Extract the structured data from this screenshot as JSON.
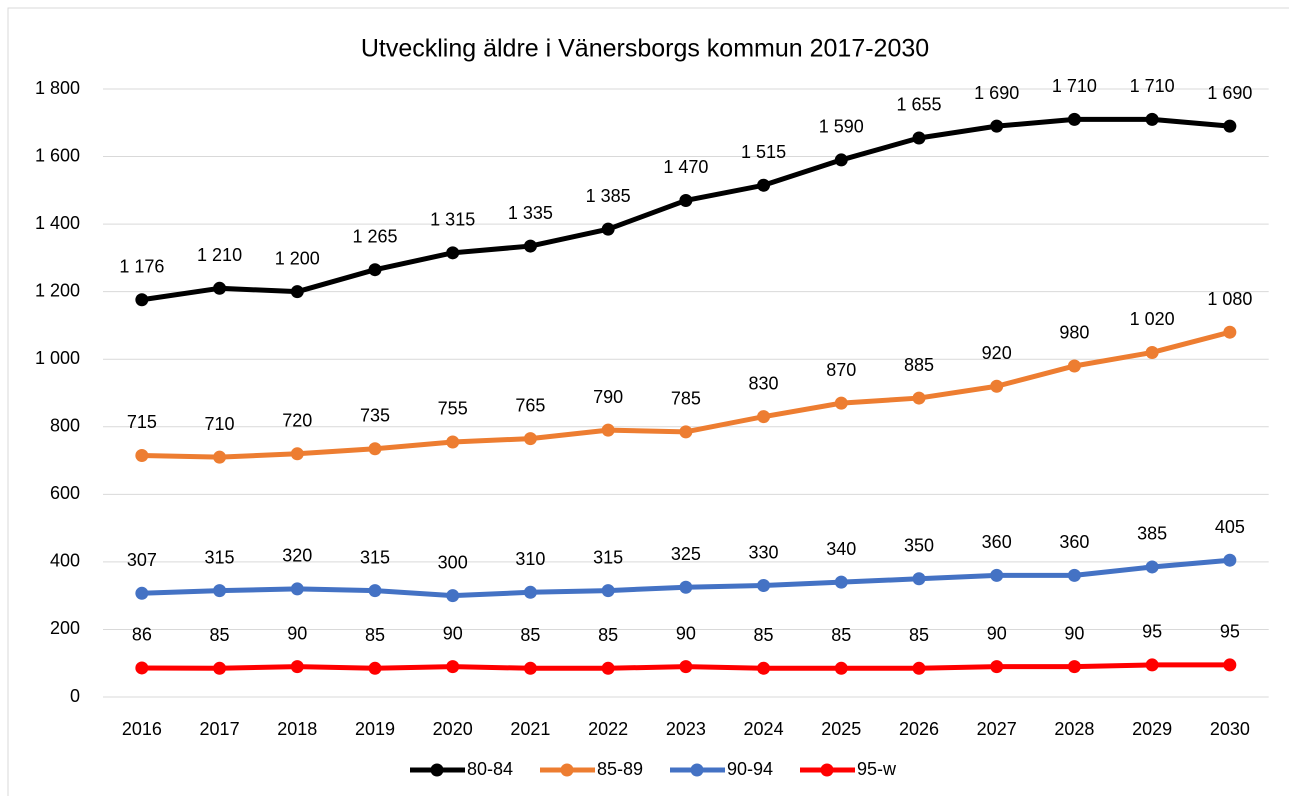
{
  "chart_data": {
    "type": "line",
    "title": "Utveckling äldre i Vänersborgs kommun 2017-2030",
    "categories": [
      "2016",
      "2017",
      "2018",
      "2019",
      "2020",
      "2021",
      "2022",
      "2023",
      "2024",
      "2025",
      "2026",
      "2027",
      "2028",
      "2029",
      "2030"
    ],
    "series": [
      {
        "name": "80-84",
        "color": "#000000",
        "values": [
          1176,
          1210,
          1200,
          1265,
          1315,
          1335,
          1385,
          1470,
          1515,
          1590,
          1655,
          1690,
          1710,
          1710,
          1690
        ],
        "value_labels": [
          "1 176",
          "1 210",
          "1 200",
          "1 265",
          "1 315",
          "1 335",
          "1 385",
          "1 470",
          "1 515",
          "1 590",
          "1 655",
          "1 690",
          "1 710",
          "1 710",
          "1 690"
        ]
      },
      {
        "name": "85-89",
        "color": "#ed7d31",
        "values": [
          715,
          710,
          720,
          735,
          755,
          765,
          790,
          785,
          830,
          870,
          885,
          920,
          980,
          1020,
          1080
        ],
        "value_labels": [
          "715",
          "710",
          "720",
          "735",
          "755",
          "765",
          "790",
          "785",
          "830",
          "870",
          "885",
          "920",
          "980",
          "1 020",
          "1 080"
        ]
      },
      {
        "name": "90-94",
        "color": "#4472c4",
        "values": [
          307,
          315,
          320,
          315,
          300,
          310,
          315,
          325,
          330,
          340,
          350,
          360,
          360,
          385,
          405
        ]
      },
      {
        "name": "95-w",
        "color": "#ff0000",
        "values": [
          86,
          85,
          90,
          85,
          90,
          85,
          85,
          90,
          85,
          85,
          85,
          90,
          90,
          95,
          95
        ]
      }
    ],
    "ylim": [
      0,
      1800
    ],
    "yticks": [
      0,
      200,
      400,
      600,
      800,
      {
        "value": 1000,
        "label": "1 000"
      },
      {
        "value": 1200,
        "label": "1 200"
      },
      {
        "value": 1400,
        "label": "1 400"
      },
      {
        "value": 1600,
        "label": "1 600"
      },
      {
        "value": 1800,
        "label": "1 800"
      }
    ],
    "grid": true,
    "legend": "bottom"
  }
}
